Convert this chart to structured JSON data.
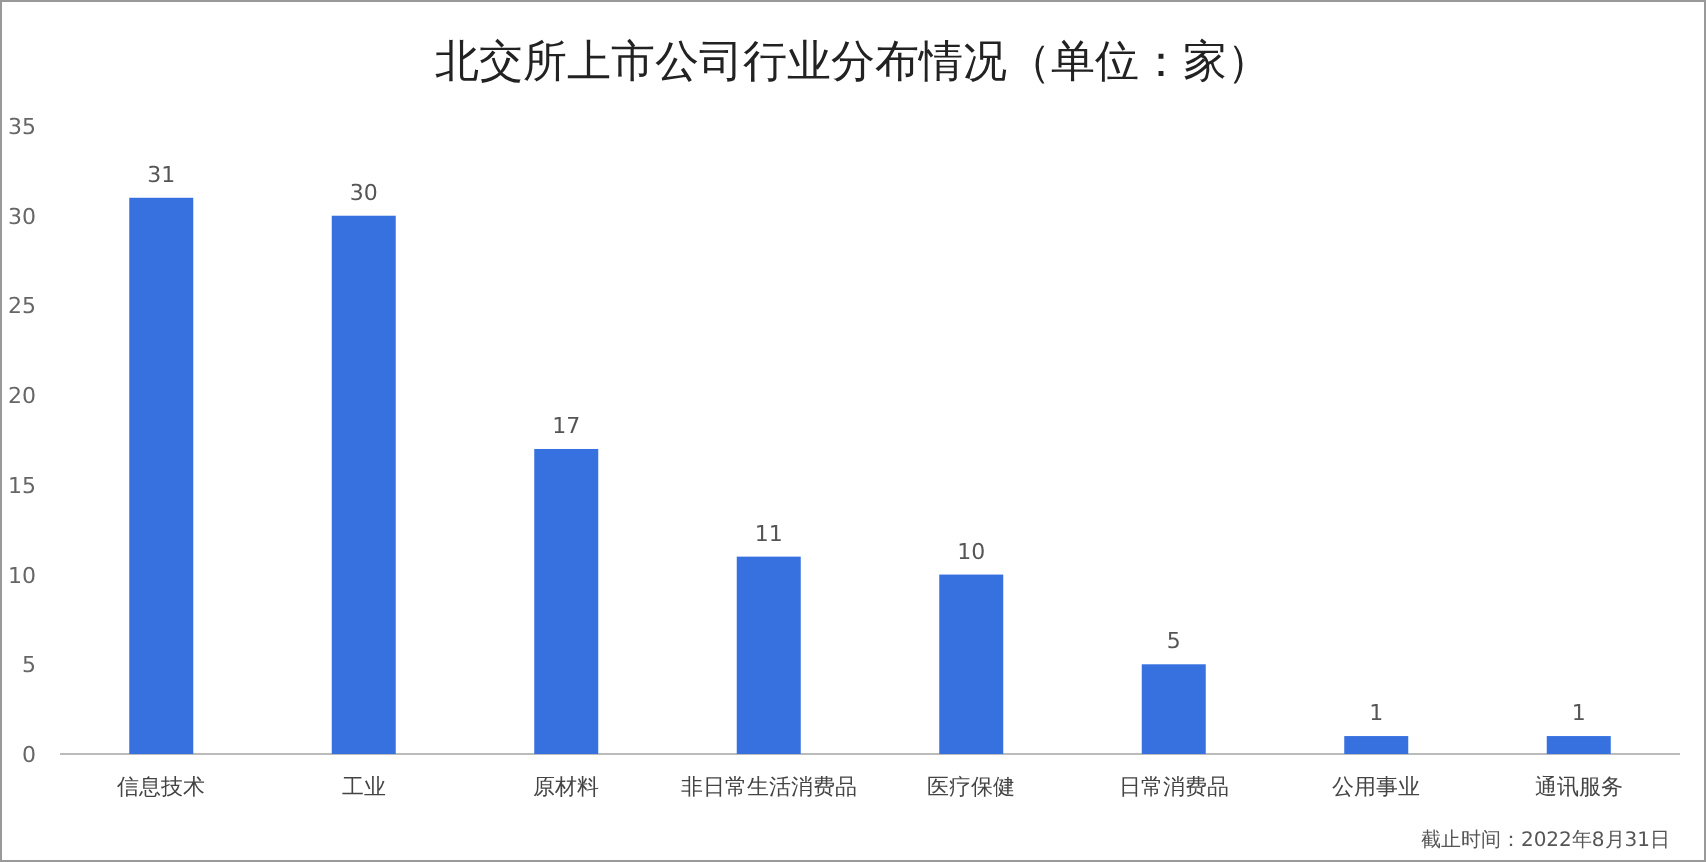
{
  "chart_data": {
    "type": "bar",
    "title": "北交所上市公司行业分布情况（单位：家）",
    "categories": [
      "信息技术",
      "工业",
      "原材料",
      "非日常生活消费品",
      "医疗保健",
      "日常消费品",
      "公用事业",
      "通讯服务"
    ],
    "values": [
      31,
      30,
      17,
      11,
      10,
      5,
      1,
      1
    ],
    "color": "#3771e0",
    "ylim": [
      0,
      35
    ],
    "yticks": [
      0,
      5,
      10,
      15,
      20,
      25,
      30,
      35
    ],
    "data_labels": true,
    "annotations": [
      "截止时间：2022年8月31日"
    ]
  }
}
